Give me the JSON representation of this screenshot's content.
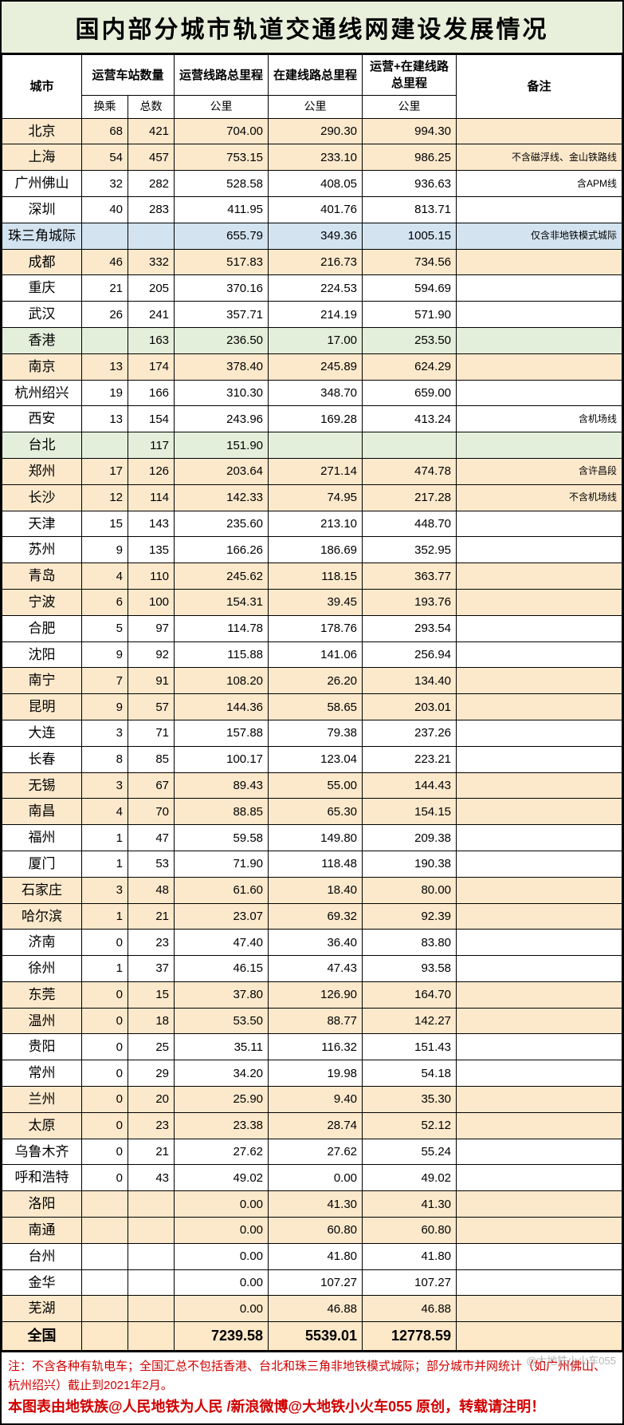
{
  "title": "国内部分城市轨道交通线网建设发展情况",
  "headers": {
    "city": "城市",
    "stations": "运营车站数量",
    "stations_hc": "换乘",
    "stations_zs": "总数",
    "op_km": "运营线路总里程",
    "build_km": "在建线路总里程",
    "total_km": "运营+在建线路总里程",
    "unit_km": "公里",
    "note": "备注"
  },
  "row_styles": {
    "tan_bg": "#fce9cc",
    "blue_bg": "#d3e3f0",
    "green_bg": "#e4efdb",
    "white_bg": "#ffffff",
    "total_bg": "#fde8c8",
    "title_bg": "#e8f0dc",
    "border_color": "#000000",
    "footer_color": "#d00000"
  },
  "rows": [
    {
      "city": "北京",
      "hc": "68",
      "zs": "421",
      "op": "704.00",
      "bd": "290.30",
      "tt": "994.30",
      "note": "",
      "cls": "row-tan"
    },
    {
      "city": "上海",
      "hc": "54",
      "zs": "457",
      "op": "753.15",
      "bd": "233.10",
      "tt": "986.25",
      "note": "不含磁浮线、金山铁路线",
      "cls": "row-tan"
    },
    {
      "city": "广州佛山",
      "hc": "32",
      "zs": "282",
      "op": "528.58",
      "bd": "408.05",
      "tt": "936.63",
      "note": "含APM线",
      "cls": "row-white"
    },
    {
      "city": "深圳",
      "hc": "40",
      "zs": "283",
      "op": "411.95",
      "bd": "401.76",
      "tt": "813.71",
      "note": "",
      "cls": "row-white"
    },
    {
      "city": "珠三角城际",
      "hc": "",
      "zs": "",
      "op": "655.79",
      "bd": "349.36",
      "tt": "1005.15",
      "note": "仅含非地铁模式城际",
      "cls": "row-blue"
    },
    {
      "city": "成都",
      "hc": "46",
      "zs": "332",
      "op": "517.83",
      "bd": "216.73",
      "tt": "734.56",
      "note": "",
      "cls": "row-tan"
    },
    {
      "city": "重庆",
      "hc": "21",
      "zs": "205",
      "op": "370.16",
      "bd": "224.53",
      "tt": "594.69",
      "note": "",
      "cls": "row-white"
    },
    {
      "city": "武汉",
      "hc": "26",
      "zs": "241",
      "op": "357.71",
      "bd": "214.19",
      "tt": "571.90",
      "note": "",
      "cls": "row-white"
    },
    {
      "city": "香港",
      "hc": "",
      "zs": "163",
      "op": "236.50",
      "bd": "17.00",
      "tt": "253.50",
      "note": "",
      "cls": "row-green"
    },
    {
      "city": "南京",
      "hc": "13",
      "zs": "174",
      "op": "378.40",
      "bd": "245.89",
      "tt": "624.29",
      "note": "",
      "cls": "row-tan"
    },
    {
      "city": "杭州绍兴",
      "hc": "19",
      "zs": "166",
      "op": "310.30",
      "bd": "348.70",
      "tt": "659.00",
      "note": "",
      "cls": "row-white"
    },
    {
      "city": "西安",
      "hc": "13",
      "zs": "154",
      "op": "243.96",
      "bd": "169.28",
      "tt": "413.24",
      "note": "含机场线",
      "cls": "row-white"
    },
    {
      "city": "台北",
      "hc": "",
      "zs": "117",
      "op": "151.90",
      "bd": "",
      "tt": "",
      "note": "",
      "cls": "row-green"
    },
    {
      "city": "郑州",
      "hc": "17",
      "zs": "126",
      "op": "203.64",
      "bd": "271.14",
      "tt": "474.78",
      "note": "含许昌段",
      "cls": "row-tan"
    },
    {
      "city": "长沙",
      "hc": "12",
      "zs": "114",
      "op": "142.33",
      "bd": "74.95",
      "tt": "217.28",
      "note": "不含机场线",
      "cls": "row-tan"
    },
    {
      "city": "天津",
      "hc": "15",
      "zs": "143",
      "op": "235.60",
      "bd": "213.10",
      "tt": "448.70",
      "note": "",
      "cls": "row-white"
    },
    {
      "city": "苏州",
      "hc": "9",
      "zs": "135",
      "op": "166.26",
      "bd": "186.69",
      "tt": "352.95",
      "note": "",
      "cls": "row-white"
    },
    {
      "city": "青岛",
      "hc": "4",
      "zs": "110",
      "op": "245.62",
      "bd": "118.15",
      "tt": "363.77",
      "note": "",
      "cls": "row-tan"
    },
    {
      "city": "宁波",
      "hc": "6",
      "zs": "100",
      "op": "154.31",
      "bd": "39.45",
      "tt": "193.76",
      "note": "",
      "cls": "row-tan"
    },
    {
      "city": "合肥",
      "hc": "5",
      "zs": "97",
      "op": "114.78",
      "bd": "178.76",
      "tt": "293.54",
      "note": "",
      "cls": "row-white"
    },
    {
      "city": "沈阳",
      "hc": "9",
      "zs": "92",
      "op": "115.88",
      "bd": "141.06",
      "tt": "256.94",
      "note": "",
      "cls": "row-white"
    },
    {
      "city": "南宁",
      "hc": "7",
      "zs": "91",
      "op": "108.20",
      "bd": "26.20",
      "tt": "134.40",
      "note": "",
      "cls": "row-tan"
    },
    {
      "city": "昆明",
      "hc": "9",
      "zs": "57",
      "op": "144.36",
      "bd": "58.65",
      "tt": "203.01",
      "note": "",
      "cls": "row-tan"
    },
    {
      "city": "大连",
      "hc": "3",
      "zs": "71",
      "op": "157.88",
      "bd": "79.38",
      "tt": "237.26",
      "note": "",
      "cls": "row-white"
    },
    {
      "city": "长春",
      "hc": "8",
      "zs": "85",
      "op": "100.17",
      "bd": "123.04",
      "tt": "223.21",
      "note": "",
      "cls": "row-white"
    },
    {
      "city": "无锡",
      "hc": "3",
      "zs": "67",
      "op": "89.43",
      "bd": "55.00",
      "tt": "144.43",
      "note": "",
      "cls": "row-tan"
    },
    {
      "city": "南昌",
      "hc": "4",
      "zs": "70",
      "op": "88.85",
      "bd": "65.30",
      "tt": "154.15",
      "note": "",
      "cls": "row-tan"
    },
    {
      "city": "福州",
      "hc": "1",
      "zs": "47",
      "op": "59.58",
      "bd": "149.80",
      "tt": "209.38",
      "note": "",
      "cls": "row-white"
    },
    {
      "city": "厦门",
      "hc": "1",
      "zs": "53",
      "op": "71.90",
      "bd": "118.48",
      "tt": "190.38",
      "note": "",
      "cls": "row-white"
    },
    {
      "city": "石家庄",
      "hc": "3",
      "zs": "48",
      "op": "61.60",
      "bd": "18.40",
      "tt": "80.00",
      "note": "",
      "cls": "row-tan"
    },
    {
      "city": "哈尔滨",
      "hc": "1",
      "zs": "21",
      "op": "23.07",
      "bd": "69.32",
      "tt": "92.39",
      "note": "",
      "cls": "row-tan"
    },
    {
      "city": "济南",
      "hc": "0",
      "zs": "23",
      "op": "47.40",
      "bd": "36.40",
      "tt": "83.80",
      "note": "",
      "cls": "row-white"
    },
    {
      "city": "徐州",
      "hc": "1",
      "zs": "37",
      "op": "46.15",
      "bd": "47.43",
      "tt": "93.58",
      "note": "",
      "cls": "row-white"
    },
    {
      "city": "东莞",
      "hc": "0",
      "zs": "15",
      "op": "37.80",
      "bd": "126.90",
      "tt": "164.70",
      "note": "",
      "cls": "row-tan"
    },
    {
      "city": "温州",
      "hc": "0",
      "zs": "18",
      "op": "53.50",
      "bd": "88.77",
      "tt": "142.27",
      "note": "",
      "cls": "row-tan"
    },
    {
      "city": "贵阳",
      "hc": "0",
      "zs": "25",
      "op": "35.11",
      "bd": "116.32",
      "tt": "151.43",
      "note": "",
      "cls": "row-white"
    },
    {
      "city": "常州",
      "hc": "0",
      "zs": "29",
      "op": "34.20",
      "bd": "19.98",
      "tt": "54.18",
      "note": "",
      "cls": "row-white"
    },
    {
      "city": "兰州",
      "hc": "0",
      "zs": "20",
      "op": "25.90",
      "bd": "9.40",
      "tt": "35.30",
      "note": "",
      "cls": "row-tan"
    },
    {
      "city": "太原",
      "hc": "0",
      "zs": "23",
      "op": "23.38",
      "bd": "28.74",
      "tt": "52.12",
      "note": "",
      "cls": "row-tan"
    },
    {
      "city": "乌鲁木齐",
      "hc": "0",
      "zs": "21",
      "op": "27.62",
      "bd": "27.62",
      "tt": "55.24",
      "note": "",
      "cls": "row-white"
    },
    {
      "city": "呼和浩特",
      "hc": "0",
      "zs": "43",
      "op": "49.02",
      "bd": "0.00",
      "tt": "49.02",
      "note": "",
      "cls": "row-white"
    },
    {
      "city": "洛阳",
      "hc": "",
      "zs": "",
      "op": "0.00",
      "bd": "41.30",
      "tt": "41.30",
      "note": "",
      "cls": "row-tan"
    },
    {
      "city": "南通",
      "hc": "",
      "zs": "",
      "op": "0.00",
      "bd": "60.80",
      "tt": "60.80",
      "note": "",
      "cls": "row-tan"
    },
    {
      "city": "台州",
      "hc": "",
      "zs": "",
      "op": "0.00",
      "bd": "41.80",
      "tt": "41.80",
      "note": "",
      "cls": "row-white"
    },
    {
      "city": "金华",
      "hc": "",
      "zs": "",
      "op": "0.00",
      "bd": "107.27",
      "tt": "107.27",
      "note": "",
      "cls": "row-white"
    },
    {
      "city": "芜湖",
      "hc": "",
      "zs": "",
      "op": "0.00",
      "bd": "46.88",
      "tt": "46.88",
      "note": "",
      "cls": "row-tan"
    }
  ],
  "total": {
    "city": "全国",
    "op": "7239.58",
    "bd": "5539.01",
    "tt": "12778.59"
  },
  "footer_note": "注：不含各种有轨电车；全国汇总不包括香港、台北和珠三角非地铁模式城际；部分城市并网统计（如广州佛山、杭州绍兴）截止到2021年2月。",
  "footer_credit": "本图表由地铁族@人民地铁为人民 /新浪微博@大地铁小火车055 原创，转载请注明！",
  "watermark": "@大地铁小火车055"
}
